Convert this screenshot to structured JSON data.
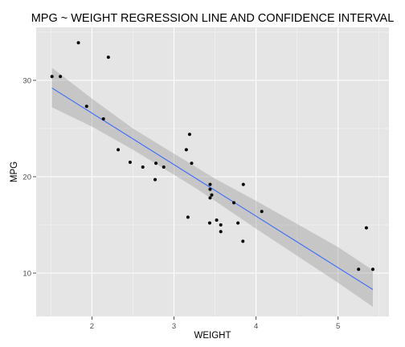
{
  "chart_data": {
    "type": "scatter",
    "title": "MPG ~ WEIGHT REGRESSION LINE AND CONFIDENCE INTERVAL",
    "xlabel": "WEIGHT",
    "ylabel": "MPG",
    "xlim": [
      1.32,
      5.62
    ],
    "ylim": [
      5.5,
      35.5
    ],
    "x_ticks": [
      2,
      3,
      4,
      5
    ],
    "y_ticks": [
      10,
      20,
      30
    ],
    "grid": true,
    "panel_background": "#e5e5e5",
    "grid_color": "#ffffff",
    "point_color": "#000000",
    "line_color": "#3366ff",
    "band_color": "#999999",
    "points": [
      {
        "x": 1.513,
        "y": 30.4
      },
      {
        "x": 1.615,
        "y": 30.4
      },
      {
        "x": 1.835,
        "y": 33.9
      },
      {
        "x": 1.935,
        "y": 27.3
      },
      {
        "x": 2.14,
        "y": 26.0
      },
      {
        "x": 2.2,
        "y": 32.4
      },
      {
        "x": 2.32,
        "y": 22.8
      },
      {
        "x": 2.465,
        "y": 21.5
      },
      {
        "x": 2.62,
        "y": 21.0
      },
      {
        "x": 2.77,
        "y": 19.7
      },
      {
        "x": 2.78,
        "y": 21.4
      },
      {
        "x": 2.875,
        "y": 21.0
      },
      {
        "x": 3.15,
        "y": 22.8
      },
      {
        "x": 3.17,
        "y": 15.8
      },
      {
        "x": 3.19,
        "y": 24.4
      },
      {
        "x": 3.215,
        "y": 21.4
      },
      {
        "x": 3.435,
        "y": 15.2
      },
      {
        "x": 3.44,
        "y": 18.7
      },
      {
        "x": 3.44,
        "y": 19.2
      },
      {
        "x": 3.44,
        "y": 17.8
      },
      {
        "x": 3.46,
        "y": 18.1
      },
      {
        "x": 3.52,
        "y": 15.5
      },
      {
        "x": 3.57,
        "y": 14.3
      },
      {
        "x": 3.57,
        "y": 15.0
      },
      {
        "x": 3.73,
        "y": 17.3
      },
      {
        "x": 3.78,
        "y": 15.2
      },
      {
        "x": 3.84,
        "y": 13.3
      },
      {
        "x": 3.845,
        "y": 19.2
      },
      {
        "x": 4.07,
        "y": 16.4
      },
      {
        "x": 5.25,
        "y": 10.4
      },
      {
        "x": 5.345,
        "y": 14.7
      },
      {
        "x": 5.424,
        "y": 10.4
      }
    ],
    "regression": {
      "x": [
        1.513,
        5.424
      ],
      "y": [
        29.2,
        8.3
      ]
    },
    "confidence_band": {
      "x": [
        1.513,
        2.0,
        2.5,
        3.0,
        3.25,
        3.5,
        4.0,
        4.5,
        5.0,
        5.424
      ],
      "lower": [
        27.2,
        25.2,
        22.8,
        20.2,
        18.9,
        17.5,
        14.6,
        11.8,
        9.0,
        6.5
      ],
      "upper": [
        31.3,
        28.1,
        25.0,
        22.4,
        21.1,
        19.8,
        17.5,
        15.1,
        12.7,
        10.3
      ]
    }
  }
}
